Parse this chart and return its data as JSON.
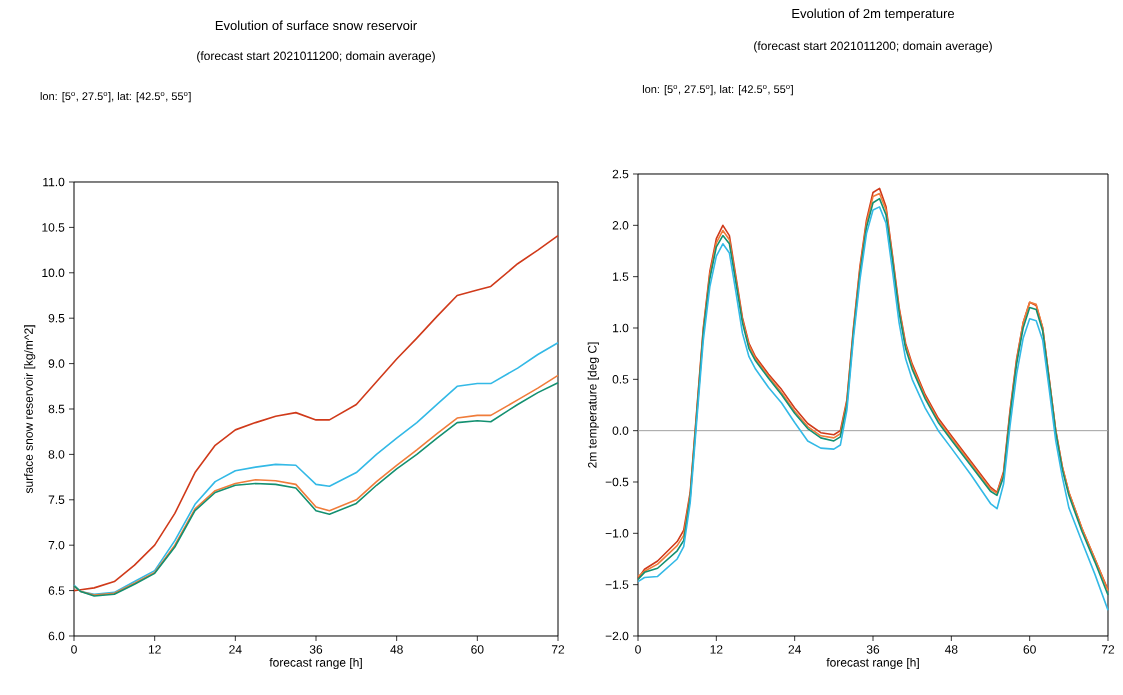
{
  "chart_data": [
    {
      "type": "line",
      "title": "Evolution of surface snow reservoir",
      "subtitle": "(forecast start 2021011200; domain average)",
      "annotations": [
        "lon: [5$^{o}$, 27.5$^{o}$], lat: [42.5$^{o}$, 55$^{o}$]"
      ],
      "xlabel": "forecast range [h]",
      "ylabel": "surface snow reservoir [kg/m^2]",
      "x": [
        0,
        1,
        3,
        6,
        9,
        12,
        15,
        18,
        21,
        24,
        27,
        30,
        33,
        36,
        38,
        42,
        45,
        48,
        51,
        54,
        57,
        60,
        62,
        66,
        69,
        72
      ],
      "xlim": [
        0,
        72
      ],
      "xticks": [
        0,
        12,
        24,
        36,
        48,
        60,
        72
      ],
      "ylim": [
        6,
        11
      ],
      "yticks": [
        {
          "value": 6,
          "label": "6.0"
        },
        {
          "value": 6.5,
          "label": "6.5"
        },
        {
          "value": 7,
          "label": "7.0"
        },
        {
          "value": 7.5,
          "label": "7.5"
        },
        {
          "value": 8,
          "label": "8.0"
        },
        {
          "value": 8.5,
          "label": "8.5"
        },
        {
          "value": 9,
          "label": "9.0"
        },
        {
          "value": 9.5,
          "label": "9.5"
        },
        {
          "value": 10,
          "label": "10.0"
        },
        {
          "value": 10.5,
          "label": "10.5"
        },
        {
          "value": 11,
          "label": "11.0"
        }
      ],
      "series": [
        {
          "color": "#d03a1a",
          "values": [
            6.5,
            6.51,
            6.53,
            6.6,
            6.78,
            7.0,
            7.35,
            7.8,
            8.1,
            8.27,
            8.35,
            8.42,
            8.46,
            8.38,
            8.38,
            8.55,
            8.8,
            9.05,
            9.28,
            9.52,
            9.75,
            9.81,
            9.85,
            10.1,
            10.25,
            10.41
          ]
        },
        {
          "color": "#33b9e6",
          "values": [
            6.56,
            6.49,
            6.46,
            6.48,
            6.6,
            6.72,
            7.05,
            7.45,
            7.7,
            7.82,
            7.86,
            7.89,
            7.88,
            7.67,
            7.65,
            7.8,
            8.0,
            8.18,
            8.35,
            8.55,
            8.75,
            8.78,
            8.78,
            8.95,
            9.1,
            9.23
          ]
        },
        {
          "color": "#f07c3a",
          "values": [
            6.55,
            6.49,
            6.45,
            6.47,
            6.58,
            6.7,
            7.0,
            7.4,
            7.6,
            7.68,
            7.72,
            7.71,
            7.67,
            7.42,
            7.38,
            7.5,
            7.7,
            7.88,
            8.05,
            8.23,
            8.4,
            8.43,
            8.43,
            8.6,
            8.73,
            8.87
          ]
        },
        {
          "color": "#139070",
          "values": [
            6.55,
            6.49,
            6.44,
            6.46,
            6.57,
            6.69,
            6.98,
            7.38,
            7.58,
            7.66,
            7.68,
            7.67,
            7.63,
            7.38,
            7.34,
            7.46,
            7.66,
            7.84,
            8.0,
            8.18,
            8.35,
            8.37,
            8.36,
            8.55,
            8.68,
            8.79
          ]
        }
      ]
    },
    {
      "type": "line",
      "title": "Evolution of 2m temperature",
      "subtitle": "(forecast start 2021011200; domain average)",
      "annotations": [
        "lon: [5$^{o}$, 27.5$^{o}$], lat: [42.5$^{o}$, 55$^{o}$]"
      ],
      "xlabel": "forecast range [h]",
      "ylabel": "2m temperature [deg C]",
      "x": [
        0,
        1,
        3,
        6,
        7,
        8,
        9,
        10,
        11,
        12,
        13,
        14,
        15,
        16,
        17,
        18,
        20,
        22,
        24,
        26,
        28,
        30,
        31,
        32,
        33,
        34,
        35,
        36,
        37,
        38,
        39,
        40,
        41,
        42,
        44,
        46,
        48,
        51,
        54,
        55,
        56,
        57,
        58,
        59,
        60,
        61,
        62,
        63,
        64,
        65,
        66,
        68,
        70,
        72
      ],
      "xlim": [
        0,
        72
      ],
      "xticks": [
        0,
        12,
        24,
        36,
        48,
        60,
        72
      ],
      "ylim": [
        -2,
        2.5
      ],
      "yticks": [
        {
          "value": -2,
          "label": "−2.0"
        },
        {
          "value": -1.5,
          "label": "−1.5"
        },
        {
          "value": -1,
          "label": "−1.0"
        },
        {
          "value": -0.5,
          "label": "−0.5"
        },
        {
          "value": 0,
          "label": "0.0"
        },
        {
          "value": 0.5,
          "label": "0.5"
        },
        {
          "value": 1,
          "label": "1.0"
        },
        {
          "value": 1.5,
          "label": "1.5"
        },
        {
          "value": 2,
          "label": "2.0"
        },
        {
          "value": 2.5,
          "label": "2.5"
        }
      ],
      "ref_lines": [
        {
          "axis": "y",
          "value": 0,
          "color": "#a0a0a0"
        }
      ],
      "series": [
        {
          "color": "#d03a1a",
          "values": [
            -1.44,
            -1.35,
            -1.27,
            -1.08,
            -0.97,
            -0.6,
            0.2,
            1.0,
            1.55,
            1.87,
            2.0,
            1.9,
            1.5,
            1.1,
            0.85,
            0.72,
            0.55,
            0.4,
            0.22,
            0.07,
            -0.02,
            -0.04,
            0.0,
            0.3,
            1.0,
            1.6,
            2.05,
            2.32,
            2.36,
            2.18,
            1.7,
            1.2,
            0.85,
            0.65,
            0.35,
            0.12,
            -0.05,
            -0.3,
            -0.55,
            -0.6,
            -0.4,
            0.2,
            0.7,
            1.05,
            1.25,
            1.22,
            1.0,
            0.5,
            0.0,
            -0.35,
            -0.6,
            -0.95,
            -1.25,
            -1.55
          ]
        },
        {
          "color": "#f07c3a",
          "values": [
            -1.42,
            -1.37,
            -1.3,
            -1.12,
            -1.02,
            -0.62,
            0.18,
            0.98,
            1.52,
            1.83,
            1.95,
            1.86,
            1.47,
            1.08,
            0.83,
            0.7,
            0.53,
            0.37,
            0.19,
            0.04,
            -0.05,
            -0.07,
            -0.03,
            0.28,
            0.98,
            1.57,
            2.02,
            2.28,
            2.31,
            2.15,
            1.68,
            1.18,
            0.83,
            0.63,
            0.33,
            0.1,
            -0.07,
            -0.32,
            -0.57,
            -0.61,
            -0.42,
            0.18,
            0.68,
            1.05,
            1.25,
            1.23,
            1.0,
            0.5,
            0.0,
            -0.35,
            -0.6,
            -0.95,
            -1.25,
            -1.56
          ]
        },
        {
          "color": "#139070",
          "values": [
            -1.45,
            -1.38,
            -1.34,
            -1.17,
            -1.07,
            -0.65,
            0.15,
            0.95,
            1.48,
            1.79,
            1.9,
            1.82,
            1.44,
            1.05,
            0.8,
            0.68,
            0.51,
            0.35,
            0.17,
            0.02,
            -0.07,
            -0.1,
            -0.06,
            0.25,
            0.95,
            1.53,
            1.98,
            2.22,
            2.26,
            2.1,
            1.65,
            1.15,
            0.8,
            0.6,
            0.31,
            0.08,
            -0.09,
            -0.34,
            -0.59,
            -0.63,
            -0.45,
            0.15,
            0.65,
            1.0,
            1.2,
            1.18,
            0.97,
            0.48,
            -0.02,
            -0.38,
            -0.63,
            -0.98,
            -1.28,
            -1.6
          ]
        },
        {
          "color": "#33b9e6",
          "values": [
            -1.47,
            -1.43,
            -1.42,
            -1.25,
            -1.13,
            -0.7,
            0.1,
            0.88,
            1.4,
            1.7,
            1.82,
            1.73,
            1.35,
            0.95,
            0.72,
            0.6,
            0.42,
            0.27,
            0.08,
            -0.1,
            -0.17,
            -0.18,
            -0.14,
            0.2,
            0.9,
            1.47,
            1.92,
            2.15,
            2.18,
            2.02,
            1.55,
            1.05,
            0.7,
            0.5,
            0.22,
            0.0,
            -0.17,
            -0.43,
            -0.71,
            -0.76,
            -0.52,
            0.05,
            0.55,
            0.9,
            1.09,
            1.07,
            0.88,
            0.4,
            -0.1,
            -0.45,
            -0.75,
            -1.08,
            -1.4,
            -1.75
          ]
        }
      ]
    }
  ]
}
